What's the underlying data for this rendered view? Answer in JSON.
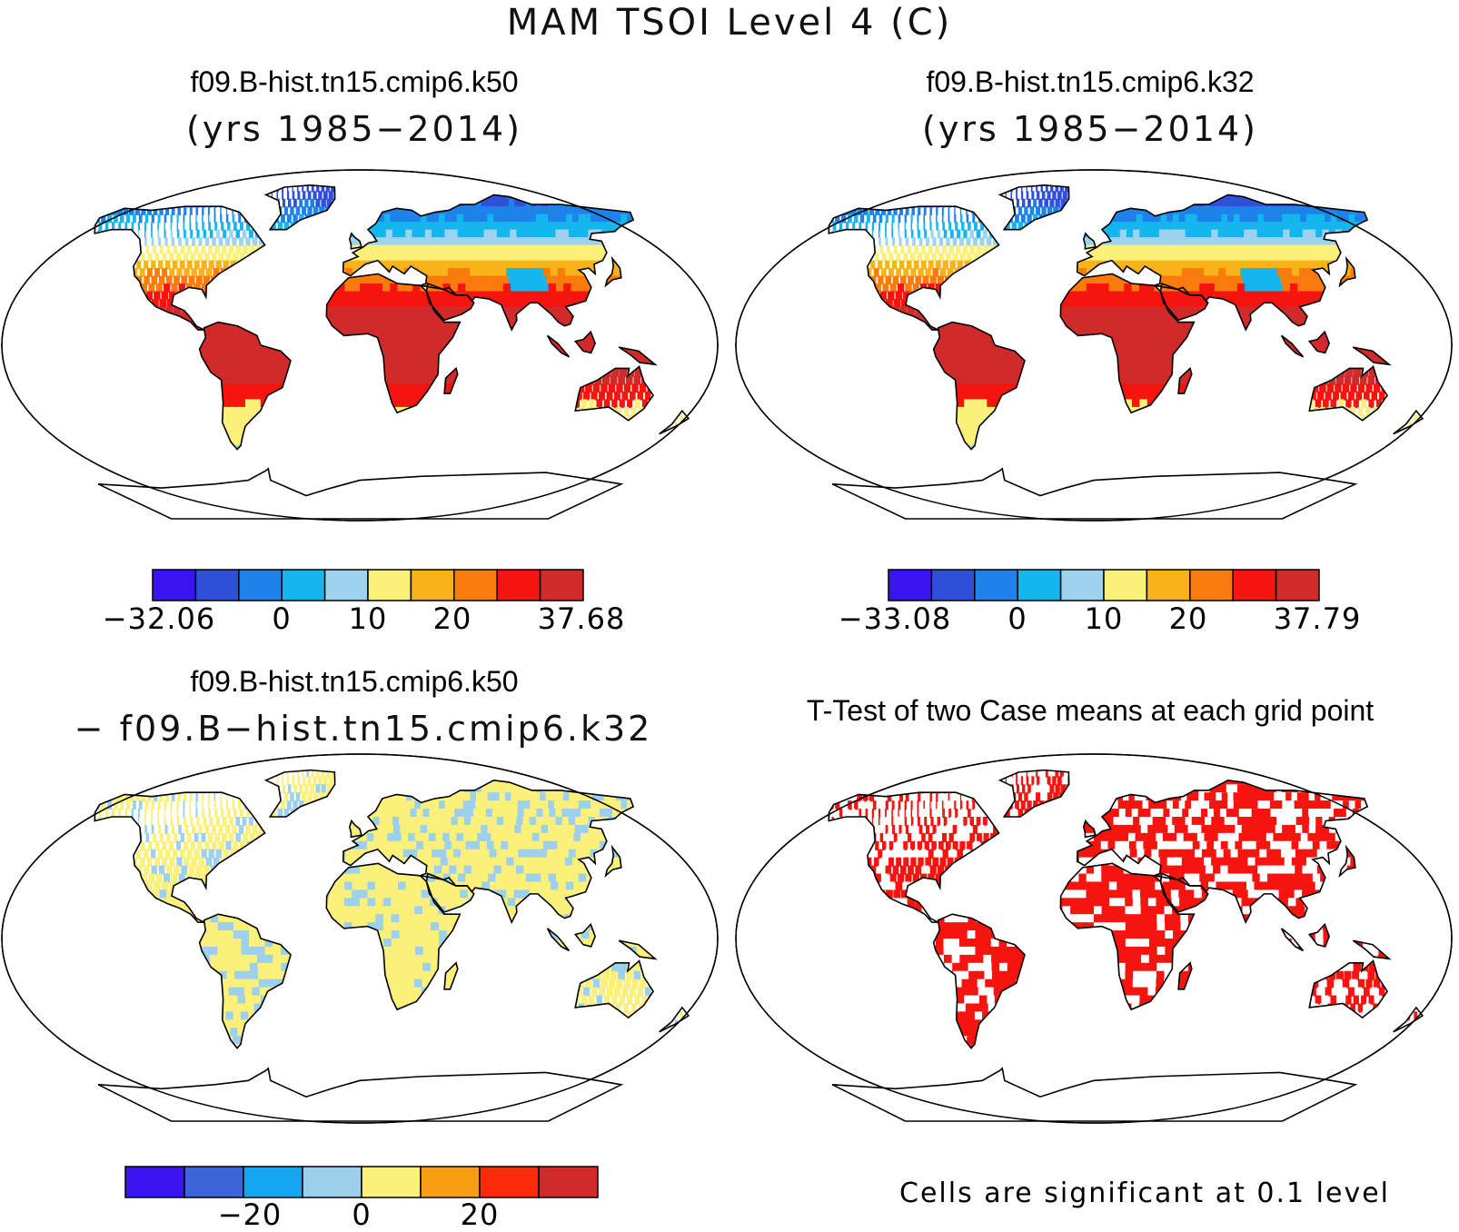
{
  "title": "MAM TSOI Level 4 (C)",
  "panels": [
    {
      "title": "f09.B-hist.tn15.cmip6.k50",
      "subtitle": "(yrs 1985−2014)",
      "colorbar": {
        "colors": [
          "#3a14f0",
          "#3050d9",
          "#1e82ea",
          "#15b5ee",
          "#9ed3ef",
          "#faf07a",
          "#f8b318",
          "#f97b0b",
          "#f5140e",
          "#d12a2a"
        ],
        "labels": [
          "−32.06",
          "0",
          "10",
          "20",
          "37.68"
        ]
      }
    },
    {
      "title": "f09.B-hist.tn15.cmip6.k32",
      "subtitle": "(yrs 1985−2014)",
      "colorbar": {
        "colors": [
          "#3a14f0",
          "#3050d9",
          "#1e82ea",
          "#15b5ee",
          "#9ed3ef",
          "#faf07a",
          "#f8b318",
          "#f97b0b",
          "#f5140e",
          "#d12a2a"
        ],
        "labels": [
          "−33.08",
          "0",
          "10",
          "20",
          "37.79"
        ]
      }
    },
    {
      "title": "f09.B-hist.tn15.cmip6.k50",
      "subtitle": "− f09.B−hist.tn15.cmip6.k32",
      "colorbar": {
        "colors": [
          "#3a14f0",
          "#3a64d8",
          "#14a7ef",
          "#9dd0ec",
          "#faf07a",
          "#f79f12",
          "#f82a0a",
          "#d12a2a"
        ],
        "labels": [
          "−20",
          "0",
          "20"
        ]
      }
    },
    {
      "title": "T-Test of two Case means at each grid point",
      "note": "Cells are significant at 0.1 level"
    }
  ]
}
